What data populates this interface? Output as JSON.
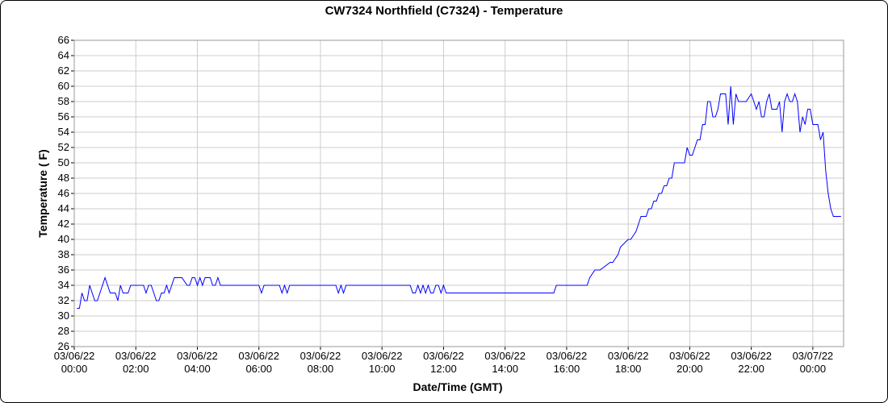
{
  "chart_data": {
    "type": "line",
    "title": "CW7324 Northfield (C7324) - Temperature",
    "xlabel": "Date/Time (GMT)",
    "ylabel": "Temperature ( F)",
    "ylim": [
      26,
      66
    ],
    "ystep": 2,
    "xlim": [
      "2022-03-06 00:00",
      "2022-03-07 01:00"
    ],
    "xticks": [
      {
        "time": "2022-03-06 00:00",
        "date": "03/06/22",
        "clock": "00:00"
      },
      {
        "time": "2022-03-06 02:00",
        "date": "03/06/22",
        "clock": "02:00"
      },
      {
        "time": "2022-03-06 04:00",
        "date": "03/06/22",
        "clock": "04:00"
      },
      {
        "time": "2022-03-06 06:00",
        "date": "03/06/22",
        "clock": "06:00"
      },
      {
        "time": "2022-03-06 08:00",
        "date": "03/06/22",
        "clock": "08:00"
      },
      {
        "time": "2022-03-06 10:00",
        "date": "03/06/22",
        "clock": "10:00"
      },
      {
        "time": "2022-03-06 12:00",
        "date": "03/06/22",
        "clock": "12:00"
      },
      {
        "time": "2022-03-06 14:00",
        "date": "03/06/22",
        "clock": "14:00"
      },
      {
        "time": "2022-03-06 16:00",
        "date": "03/06/22",
        "clock": "16:00"
      },
      {
        "time": "2022-03-06 18:00",
        "date": "03/06/22",
        "clock": "18:00"
      },
      {
        "time": "2022-03-06 20:00",
        "date": "03/06/22",
        "clock": "20:00"
      },
      {
        "time": "2022-03-06 22:00",
        "date": "03/06/22",
        "clock": "22:00"
      },
      {
        "time": "2022-03-07 00:00",
        "date": "03/07/22",
        "clock": "00:00"
      }
    ],
    "grid": true,
    "series": [
      {
        "color": "#0000ff",
        "x": [
          "2022-03-06 00:05",
          "2022-03-06 00:10",
          "2022-03-06 00:15",
          "2022-03-06 00:20",
          "2022-03-06 00:25",
          "2022-03-06 00:30",
          "2022-03-06 00:35",
          "2022-03-06 00:40",
          "2022-03-06 00:45",
          "2022-03-06 00:50",
          "2022-03-06 01:00",
          "2022-03-06 01:05",
          "2022-03-06 01:10",
          "2022-03-06 01:15",
          "2022-03-06 01:20",
          "2022-03-06 01:25",
          "2022-03-06 01:30",
          "2022-03-06 01:35",
          "2022-03-06 01:40",
          "2022-03-06 01:45",
          "2022-03-06 01:50",
          "2022-03-06 01:55",
          "2022-03-06 02:15",
          "2022-03-06 02:20",
          "2022-03-06 02:25",
          "2022-03-06 02:30",
          "2022-03-06 02:35",
          "2022-03-06 02:40",
          "2022-03-06 02:45",
          "2022-03-06 02:50",
          "2022-03-06 02:55",
          "2022-03-06 03:00",
          "2022-03-06 03:05",
          "2022-03-06 03:10",
          "2022-03-06 03:15",
          "2022-03-06 03:20",
          "2022-03-06 03:30",
          "2022-03-06 03:40",
          "2022-03-06 03:45",
          "2022-03-06 03:50",
          "2022-03-06 03:55",
          "2022-03-06 04:00",
          "2022-03-06 04:05",
          "2022-03-06 04:10",
          "2022-03-06 04:15",
          "2022-03-06 04:20",
          "2022-03-06 04:25",
          "2022-03-06 04:30",
          "2022-03-06 04:35",
          "2022-03-06 04:40",
          "2022-03-06 04:45",
          "2022-03-06 04:50",
          "2022-03-06 04:55",
          "2022-03-06 05:00",
          "2022-03-06 06:00",
          "2022-03-06 06:05",
          "2022-03-06 06:10",
          "2022-03-06 06:40",
          "2022-03-06 06:45",
          "2022-03-06 06:50",
          "2022-03-06 06:55",
          "2022-03-06 07:00",
          "2022-03-06 08:30",
          "2022-03-06 08:35",
          "2022-03-06 08:40",
          "2022-03-06 08:45",
          "2022-03-06 08:50",
          "2022-03-06 08:55",
          "2022-03-06 10:55",
          "2022-03-06 11:00",
          "2022-03-06 11:05",
          "2022-03-06 11:10",
          "2022-03-06 11:15",
          "2022-03-06 11:20",
          "2022-03-06 11:25",
          "2022-03-06 11:30",
          "2022-03-06 11:35",
          "2022-03-06 11:40",
          "2022-03-06 11:45",
          "2022-03-06 11:50",
          "2022-03-06 11:55",
          "2022-03-06 12:00",
          "2022-03-06 12:05",
          "2022-03-06 12:10",
          "2022-03-06 15:35",
          "2022-03-06 15:40",
          "2022-03-06 16:15",
          "2022-03-06 16:40",
          "2022-03-06 16:45",
          "2022-03-06 16:55",
          "2022-03-06 17:00",
          "2022-03-06 17:05",
          "2022-03-06 17:25",
          "2022-03-06 17:30",
          "2022-03-06 17:40",
          "2022-03-06 17:45",
          "2022-03-06 18:00",
          "2022-03-06 18:05",
          "2022-03-06 18:15",
          "2022-03-06 18:20",
          "2022-03-06 18:25",
          "2022-03-06 18:30",
          "2022-03-06 18:35",
          "2022-03-06 18:40",
          "2022-03-06 18:45",
          "2022-03-06 18:50",
          "2022-03-06 18:55",
          "2022-03-06 19:00",
          "2022-03-06 19:05",
          "2022-03-06 19:10",
          "2022-03-06 19:15",
          "2022-03-06 19:20",
          "2022-03-06 19:25",
          "2022-03-06 19:30",
          "2022-03-06 19:40",
          "2022-03-06 19:45",
          "2022-03-06 19:50",
          "2022-03-06 19:55",
          "2022-03-06 20:00",
          "2022-03-06 20:05",
          "2022-03-06 20:10",
          "2022-03-06 20:15",
          "2022-03-06 20:20",
          "2022-03-06 20:25",
          "2022-03-06 20:30",
          "2022-03-06 20:35",
          "2022-03-06 20:40",
          "2022-03-06 20:45",
          "2022-03-06 20:50",
          "2022-03-06 20:55",
          "2022-03-06 21:00",
          "2022-03-06 21:05",
          "2022-03-06 21:10",
          "2022-03-06 21:15",
          "2022-03-06 21:20",
          "2022-03-06 21:25",
          "2022-03-06 21:30",
          "2022-03-06 21:35",
          "2022-03-06 21:40",
          "2022-03-06 21:45",
          "2022-03-06 21:50",
          "2022-03-06 22:00",
          "2022-03-06 22:05",
          "2022-03-06 22:10",
          "2022-03-06 22:15",
          "2022-03-06 22:20",
          "2022-03-06 22:25",
          "2022-03-06 22:30",
          "2022-03-06 22:35",
          "2022-03-06 22:40",
          "2022-03-06 22:45",
          "2022-03-06 22:50",
          "2022-03-06 22:55",
          "2022-03-06 23:00",
          "2022-03-06 23:05",
          "2022-03-06 23:10",
          "2022-03-06 23:15",
          "2022-03-06 23:20",
          "2022-03-06 23:25",
          "2022-03-06 23:30",
          "2022-03-06 23:35",
          "2022-03-06 23:40",
          "2022-03-06 23:45",
          "2022-03-06 23:50",
          "2022-03-06 23:55",
          "2022-03-07 00:00",
          "2022-03-07 00:05",
          "2022-03-07 00:10",
          "2022-03-07 00:15",
          "2022-03-07 00:20",
          "2022-03-07 00:25",
          "2022-03-07 00:30",
          "2022-03-07 00:35",
          "2022-03-07 00:40",
          "2022-03-07 00:45",
          "2022-03-07 00:50"
        ],
        "y": [
          31,
          31,
          33,
          32,
          32,
          34,
          33,
          32,
          32,
          33,
          35,
          34,
          33,
          33,
          33,
          32,
          34,
          33,
          33,
          33,
          34,
          34,
          34,
          33,
          34,
          34,
          33,
          32,
          32,
          33,
          33,
          34,
          33,
          34,
          35,
          35,
          35,
          34,
          34,
          35,
          35,
          34,
          35,
          34,
          35,
          35,
          35,
          34,
          34,
          35,
          34,
          34,
          34,
          34,
          34,
          33,
          34,
          34,
          33,
          34,
          33,
          34,
          34,
          33,
          34,
          33,
          34,
          34,
          34,
          33,
          33,
          34,
          33,
          34,
          33,
          34,
          33,
          33,
          34,
          34,
          33,
          34,
          33,
          33,
          33,
          34,
          34,
          34,
          35,
          36,
          36,
          36,
          37,
          37,
          38,
          39,
          40,
          40,
          41,
          42,
          43,
          43,
          43,
          44,
          44,
          45,
          45,
          46,
          46,
          47,
          47,
          48,
          48,
          50,
          50,
          50,
          50,
          52,
          51,
          51,
          52,
          53,
          53,
          55,
          55,
          58,
          58,
          56,
          56,
          57,
          59,
          59,
          59,
          55,
          60,
          55,
          59,
          58,
          58,
          58,
          58,
          59,
          58,
          57,
          58,
          56,
          56,
          58,
          59,
          57,
          57,
          57,
          58,
          54,
          58,
          59,
          58,
          58,
          59,
          58,
          54,
          56,
          55,
          57,
          57,
          55,
          55,
          55,
          53,
          54,
          49,
          46,
          44,
          43,
          43,
          43
        ],
        "end": "2022-03-07 00:55",
        "end_value": 43
      }
    ]
  }
}
